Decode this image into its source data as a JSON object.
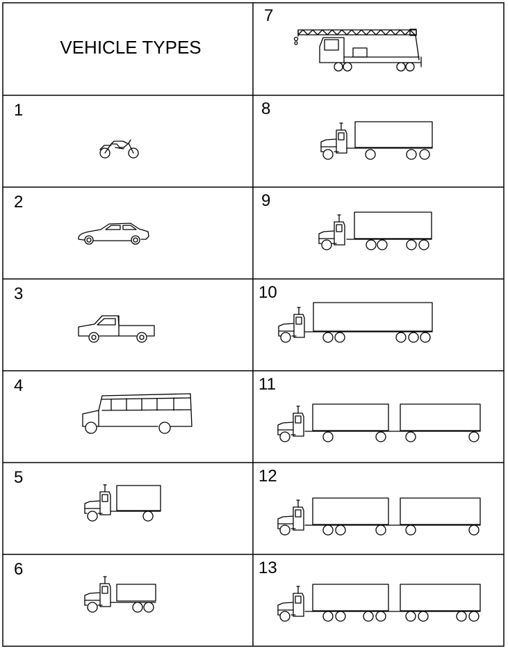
{
  "title": "VEHICLE TYPES",
  "vehicle_types": [
    {
      "number": "1",
      "icon": "motorcycle-icon"
    },
    {
      "number": "2",
      "icon": "passenger-car-icon"
    },
    {
      "number": "3",
      "icon": "pickup-truck-icon"
    },
    {
      "number": "4",
      "icon": "bus-icon"
    },
    {
      "number": "5",
      "icon": "single-unit-2-axle-truck-icon"
    },
    {
      "number": "6",
      "icon": "single-unit-3-axle-truck-icon"
    },
    {
      "number": "7",
      "icon": "single-unit-4-axle-crane-truck-icon"
    },
    {
      "number": "8",
      "icon": "single-trailer-4-axle-truck-icon"
    },
    {
      "number": "9",
      "icon": "single-trailer-5-axle-truck-icon"
    },
    {
      "number": "10",
      "icon": "single-trailer-6-axle-truck-icon"
    },
    {
      "number": "11",
      "icon": "multi-trailer-5-axle-truck-icon"
    },
    {
      "number": "12",
      "icon": "multi-trailer-6-axle-truck-icon"
    },
    {
      "number": "13",
      "icon": "multi-trailer-7-axle-truck-icon"
    }
  ]
}
